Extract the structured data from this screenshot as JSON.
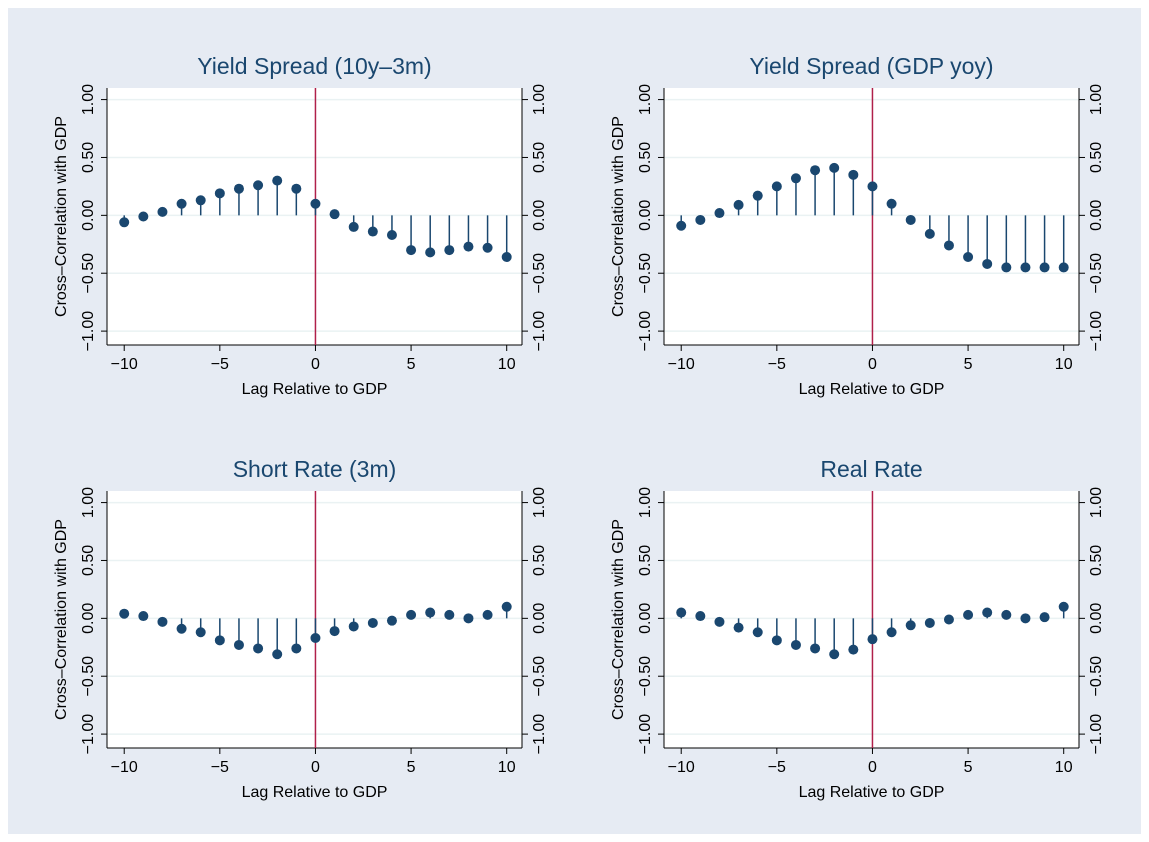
{
  "chart_data": [
    {
      "type": "stem",
      "title": "Yield Spread (10y–3m)",
      "xlabel": "Lag Relative to GDP",
      "ylabel": "Cross–Correlation with GDP",
      "x": [
        -10,
        -9,
        -8,
        -7,
        -6,
        -5,
        -4,
        -3,
        -2,
        -1,
        0,
        1,
        2,
        3,
        4,
        5,
        6,
        7,
        8,
        9,
        10
      ],
      "values": [
        -0.06,
        -0.01,
        0.03,
        0.1,
        0.13,
        0.19,
        0.23,
        0.26,
        0.3,
        0.23,
        0.1,
        0.01,
        -0.1,
        -0.14,
        -0.17,
        -0.3,
        -0.32,
        -0.3,
        -0.27,
        -0.28,
        -0.36
      ],
      "color": "#1a476f",
      "xline": 0,
      "xline_color": "#b0204a",
      "xlim": [
        -10.9,
        10.8
      ],
      "ylim": [
        -1.12,
        1.1
      ],
      "xticks": [
        {
          "value": -10,
          "label": "−10"
        },
        {
          "value": -5,
          "label": "−5"
        },
        0,
        5,
        10
      ],
      "yticks": [
        {
          "value": -1,
          "label": "−1.00"
        },
        {
          "value": -0.5,
          "label": "−0.50"
        },
        {
          "value": 0,
          "label": "0.00"
        },
        {
          "value": 0.5,
          "label": "0.50"
        },
        {
          "value": 1,
          "label": "1.00"
        }
      ],
      "grid": true
    },
    {
      "type": "stem",
      "title": "Yield Spread (GDP yoy)",
      "xlabel": "Lag Relative to GDP",
      "ylabel": "Cross–Correlation with GDP",
      "x": [
        -10,
        -9,
        -8,
        -7,
        -6,
        -5,
        -4,
        -3,
        -2,
        -1,
        0,
        1,
        2,
        3,
        4,
        5,
        6,
        7,
        8,
        9,
        10
      ],
      "values": [
        -0.09,
        -0.04,
        0.02,
        0.09,
        0.17,
        0.25,
        0.32,
        0.39,
        0.41,
        0.35,
        0.25,
        0.1,
        -0.04,
        -0.16,
        -0.26,
        -0.36,
        -0.42,
        -0.45,
        -0.45,
        -0.45,
        -0.45
      ],
      "color": "#1a476f",
      "xline": 0,
      "xline_color": "#b0204a",
      "xlim": [
        -10.9,
        10.8
      ],
      "ylim": [
        -1.12,
        1.1
      ],
      "xticks": [
        {
          "value": -10,
          "label": "−10"
        },
        {
          "value": -5,
          "label": "−5"
        },
        0,
        5,
        10
      ],
      "yticks": [
        {
          "value": -1,
          "label": "−1.00"
        },
        {
          "value": -0.5,
          "label": "−0.50"
        },
        {
          "value": 0,
          "label": "0.00"
        },
        {
          "value": 0.5,
          "label": "0.50"
        },
        {
          "value": 1,
          "label": "1.00"
        }
      ],
      "grid": true
    },
    {
      "type": "stem",
      "title": "Short Rate (3m)",
      "xlabel": "Lag Relative to GDP",
      "ylabel": "Cross–Correlation with GDP",
      "x": [
        -10,
        -9,
        -8,
        -7,
        -6,
        -5,
        -4,
        -3,
        -2,
        -1,
        0,
        1,
        2,
        3,
        4,
        5,
        6,
        7,
        8,
        9,
        10
      ],
      "values": [
        0.04,
        0.02,
        -0.03,
        -0.09,
        -0.12,
        -0.19,
        -0.23,
        -0.26,
        -0.31,
        -0.26,
        -0.17,
        -0.11,
        -0.07,
        -0.04,
        -0.02,
        0.03,
        0.05,
        0.03,
        0.0,
        0.03,
        0.1
      ],
      "color": "#1a476f",
      "xline": 0,
      "xline_color": "#b0204a",
      "xlim": [
        -10.9,
        10.8
      ],
      "ylim": [
        -1.12,
        1.1
      ],
      "xticks": [
        {
          "value": -10,
          "label": "−10"
        },
        {
          "value": -5,
          "label": "−5"
        },
        0,
        5,
        10
      ],
      "yticks": [
        {
          "value": -1,
          "label": "−1.00"
        },
        {
          "value": -0.5,
          "label": "−0.50"
        },
        {
          "value": 0,
          "label": "0.00"
        },
        {
          "value": 0.5,
          "label": "0.50"
        },
        {
          "value": 1,
          "label": "1.00"
        }
      ],
      "grid": true
    },
    {
      "type": "stem",
      "title": "Real Rate",
      "xlabel": "Lag Relative to GDP",
      "ylabel": "Cross–Correlation with GDP",
      "x": [
        -10,
        -9,
        -8,
        -7,
        -6,
        -5,
        -4,
        -3,
        -2,
        -1,
        0,
        1,
        2,
        3,
        4,
        5,
        6,
        7,
        8,
        9,
        10
      ],
      "values": [
        0.05,
        0.02,
        -0.03,
        -0.08,
        -0.12,
        -0.19,
        -0.23,
        -0.26,
        -0.31,
        -0.27,
        -0.18,
        -0.12,
        -0.06,
        -0.04,
        -0.01,
        0.03,
        0.05,
        0.03,
        0.0,
        0.01,
        0.1
      ],
      "color": "#1a476f",
      "xline": 0,
      "xline_color": "#b0204a",
      "xlim": [
        -10.9,
        10.8
      ],
      "ylim": [
        -1.12,
        1.1
      ],
      "xticks": [
        {
          "value": -10,
          "label": "−10"
        },
        {
          "value": -5,
          "label": "−5"
        },
        0,
        5,
        10
      ],
      "yticks": [
        {
          "value": -1,
          "label": "−1.00"
        },
        {
          "value": -0.5,
          "label": "−0.50"
        },
        {
          "value": 0,
          "label": "0.00"
        },
        {
          "value": 0.5,
          "label": "0.50"
        },
        {
          "value": 1,
          "label": "1.00"
        }
      ],
      "grid": true
    }
  ]
}
